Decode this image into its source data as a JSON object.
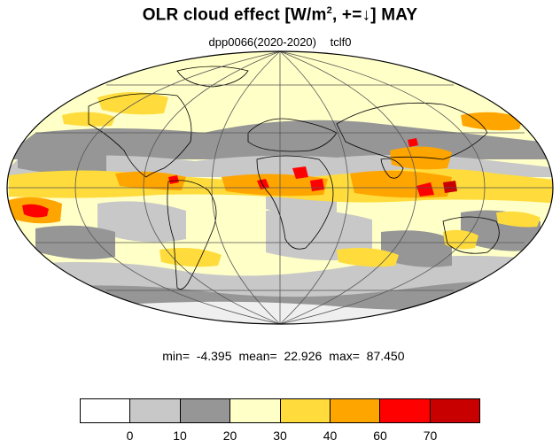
{
  "title": {
    "prefix": "OLR cloud effect [W/m",
    "sup": "2",
    "suffix": ", +=↓]  MAY"
  },
  "subtitle": {
    "left": "dpp0066(2020-2020)",
    "right": "tclf0"
  },
  "stats": {
    "min": "min=  -4.395",
    "mean": "mean=  22.926",
    "max": "max=  87.450"
  },
  "colorbar": {
    "colors": [
      "#ffffff",
      "#c8c8c8",
      "#969696",
      "#ffffc8",
      "#ffdc3c",
      "#ffa500",
      "#ff0000",
      "#c80000"
    ],
    "labels": [
      "0",
      "10",
      "20",
      "30",
      "40",
      "60",
      "70"
    ]
  },
  "palette": {
    "white": "#ffffff",
    "light_gray": "#c8c8c8",
    "dark_gray": "#969696",
    "pale_yellow": "#ffffc8",
    "yellow": "#ffdc3c",
    "orange": "#ffa500",
    "red": "#ff0000",
    "dark_red": "#c80000"
  },
  "map": {
    "projection": "mollweide",
    "grid": true
  }
}
